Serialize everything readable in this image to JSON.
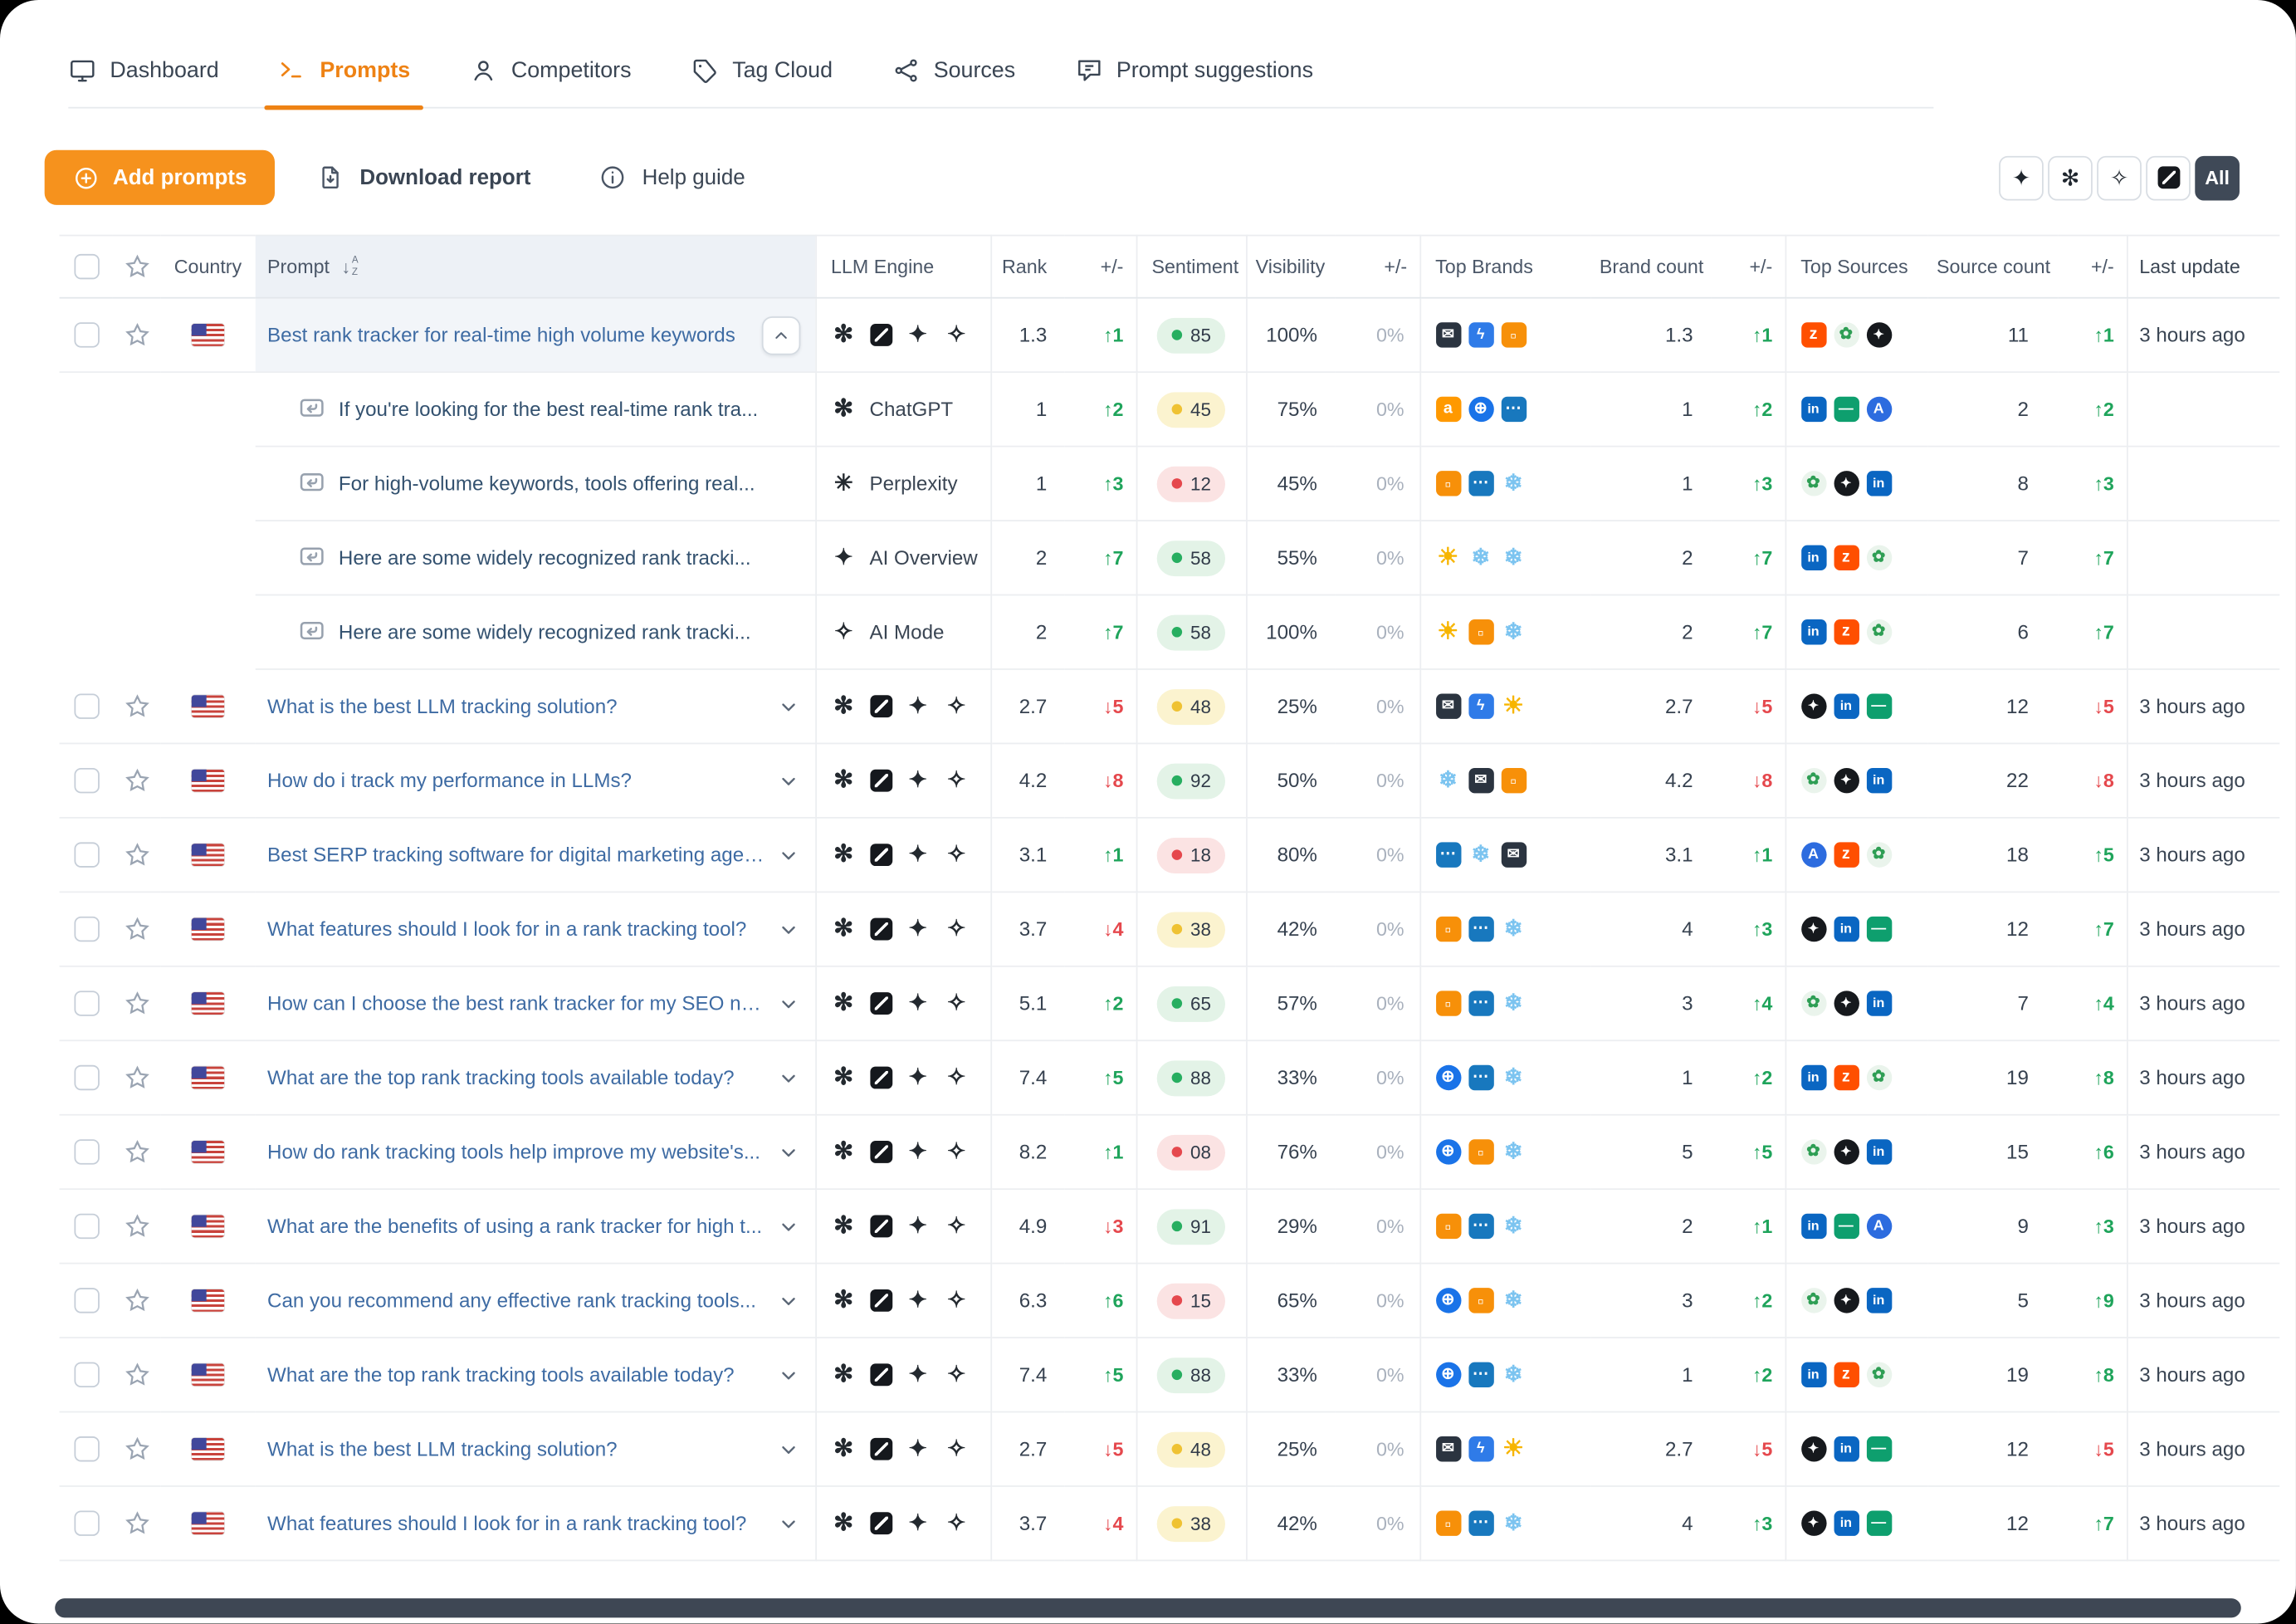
{
  "nav": {
    "tabs": [
      {
        "label": "Dashboard"
      },
      {
        "label": "Prompts",
        "active": true
      },
      {
        "label": "Competitors"
      },
      {
        "label": "Tag Cloud"
      },
      {
        "label": "Sources"
      },
      {
        "label": "Prompt suggestions"
      }
    ]
  },
  "toolbar": {
    "add_prompts_label": "Add prompts",
    "download_report_label": "Download report",
    "help_guide_label": "Help guide",
    "engine_filter": {
      "all_label": "All"
    }
  },
  "colors": {
    "accent_orange": "#EE8214",
    "up_green": "#1FA45B",
    "down_red": "#E5484D",
    "link_blue": "#3E6BA3",
    "all_button_dark": "#3F4957"
  },
  "icons": {
    "chatgpt": {
      "glyph": "✻",
      "fg": "#23292F",
      "shape": "plain",
      "fs": 16
    },
    "grok": {
      "type": "grok"
    },
    "ai-overview": {
      "glyph": "✦",
      "fg": "#23292F",
      "shape": "plain",
      "fs": 15
    },
    "ai-mode": {
      "glyph": "✧",
      "fg": "#23292F",
      "shape": "plain",
      "fs": 15
    },
    "perplexity": {
      "glyph": "✳",
      "fg": "#23292F",
      "shape": "plain",
      "fs": 15
    },
    "mail-dark": {
      "glyph": "✉",
      "fg": "#FFFFFF",
      "bg": "#2B3440",
      "shape": "square"
    },
    "bolt-blue": {
      "glyph": "ϟ",
      "fg": "#FFFFFF",
      "bg": "#2F7BE8",
      "shape": "square"
    },
    "img-orange": {
      "glyph": "▫",
      "fg": "#FFFFFF",
      "bg": "#F79009",
      "shape": "square",
      "fs": 12
    },
    "amazon": {
      "glyph": "a",
      "fg": "#FFFFFF",
      "bg": "#FF9900",
      "shape": "square",
      "fs": 11
    },
    "globe-blue": {
      "glyph": "⊕",
      "fg": "#FFFFFF",
      "bg": "#1A73E8",
      "shape": "circle",
      "fs": 11
    },
    "dots-blue": {
      "glyph": "⋯",
      "fg": "#FFFFFF",
      "bg": "#1878BE",
      "shape": "square",
      "fs": 11
    },
    "snowflake": {
      "glyph": "❄",
      "fg": "#7CC4F0",
      "shape": "plain",
      "fs": 15
    },
    "sun": {
      "glyph": "☀",
      "fg": "#F7B500",
      "shape": "plain",
      "fs": 16
    },
    "linkedin": {
      "glyph": "in",
      "fg": "#FFFFFF",
      "bg": "#0A66C2",
      "shape": "square",
      "fs": 9
    },
    "zapier": {
      "glyph": "z",
      "fg": "#FFFFFF",
      "bg": "#FF4F00",
      "shape": "square",
      "fs": 11
    },
    "plant-green": {
      "glyph": "✿",
      "fg": "#2E9E54",
      "bg": "#EAF4EC",
      "shape": "circle",
      "fs": 11
    },
    "black-circle": {
      "glyph": "✦",
      "fg": "#FFFFFF",
      "bg": "#16191D",
      "shape": "circle",
      "fs": 9
    },
    "teal-flat": {
      "glyph": "—",
      "fg": "#FFFFFF",
      "bg": "#0E9F6E",
      "shape": "square",
      "fs": 10
    },
    "blue-a": {
      "glyph": "A",
      "fg": "#FFFFFF",
      "bg": "#2D6CDF",
      "shape": "circle",
      "fs": 10
    }
  },
  "table": {
    "headers": {
      "country": "Country",
      "prompt": "Prompt",
      "llm_engine": "LLM Engine",
      "rank": "Rank",
      "rank_delta": "+/-",
      "sentiment": "Sentiment",
      "visibility": "Visibility",
      "visibility_delta": "+/-",
      "top_brands": "Top Brands",
      "brand_count": "Brand count",
      "brand_delta": "+/-",
      "top_sources": "Top Sources",
      "source_count": "Source count",
      "source_delta": "+/-",
      "last_update": "Last update"
    },
    "rows": [
      {
        "type": "parent",
        "expanded": true,
        "country": "us",
        "prompt": "Best rank tracker for real-time high volume keywords",
        "engines": [
          "chatgpt",
          "grok",
          "ai-overview",
          "ai-mode"
        ],
        "rank": "1.3",
        "rank_delta": {
          "dir": "up",
          "value": "1"
        },
        "sentiment": {
          "level": "green",
          "value": "85"
        },
        "visibility": "100%",
        "visibility_delta": "0%",
        "brands": [
          "mail-dark",
          "bolt-blue",
          "img-orange"
        ],
        "brand_count": "1.3",
        "brand_delta": {
          "dir": "up",
          "value": "1"
        },
        "sources": [
          "zapier",
          "plant-green",
          "black-circle"
        ],
        "source_count": "11",
        "source_delta": {
          "dir": "up",
          "value": "1"
        },
        "last_update": "3 hours ago"
      },
      {
        "type": "child",
        "prompt": "If you're looking for the best real-time rank tra...",
        "engine": {
          "icon": "chatgpt",
          "label": "ChatGPT"
        },
        "rank": "1",
        "rank_delta": {
          "dir": "up",
          "value": "2"
        },
        "sentiment": {
          "level": "yellow",
          "value": "45"
        },
        "visibility": "75%",
        "visibility_delta": "0%",
        "brands": [
          "amazon",
          "globe-blue",
          "dots-blue"
        ],
        "brand_count": "1",
        "brand_delta": {
          "dir": "up",
          "value": "2"
        },
        "sources": [
          "linkedin",
          "teal-flat",
          "blue-a"
        ],
        "source_count": "2",
        "source_delta": {
          "dir": "up",
          "value": "2"
        },
        "last_update": ""
      },
      {
        "type": "child",
        "prompt": "For high-volume keywords, tools offering real...",
        "engine": {
          "icon": "perplexity",
          "label": "Perplexity"
        },
        "rank": "1",
        "rank_delta": {
          "dir": "up",
          "value": "3"
        },
        "sentiment": {
          "level": "red",
          "value": "12"
        },
        "visibility": "45%",
        "visibility_delta": "0%",
        "brands": [
          "img-orange",
          "dots-blue",
          "snowflake"
        ],
        "brand_count": "1",
        "brand_delta": {
          "dir": "up",
          "value": "3"
        },
        "sources": [
          "plant-green",
          "black-circle",
          "linkedin"
        ],
        "source_count": "8",
        "source_delta": {
          "dir": "up",
          "value": "3"
        },
        "last_update": ""
      },
      {
        "type": "child",
        "prompt": "Here are some widely recognized rank tracki...",
        "engine": {
          "icon": "ai-overview",
          "label": "AI Overview"
        },
        "rank": "2",
        "rank_delta": {
          "dir": "up",
          "value": "7"
        },
        "sentiment": {
          "level": "green",
          "value": "58"
        },
        "visibility": "55%",
        "visibility_delta": "0%",
        "brands": [
          "sun",
          "snowflake",
          "snowflake"
        ],
        "brand_count": "2",
        "brand_delta": {
          "dir": "up",
          "value": "7"
        },
        "sources": [
          "linkedin",
          "zapier",
          "plant-green"
        ],
        "source_count": "7",
        "source_delta": {
          "dir": "up",
          "value": "7"
        },
        "last_update": ""
      },
      {
        "type": "child",
        "prompt": "Here are some widely recognized rank tracki...",
        "engine": {
          "icon": "ai-mode",
          "label": "AI Mode"
        },
        "rank": "2",
        "rank_delta": {
          "dir": "up",
          "value": "7"
        },
        "sentiment": {
          "level": "green",
          "value": "58"
        },
        "visibility": "100%",
        "visibility_delta": "0%",
        "brands": [
          "sun",
          "img-orange",
          "snowflake"
        ],
        "brand_count": "2",
        "brand_delta": {
          "dir": "up",
          "value": "7"
        },
        "sources": [
          "linkedin",
          "zapier",
          "plant-green"
        ],
        "source_count": "6",
        "source_delta": {
          "dir": "up",
          "value": "7"
        },
        "last_update": ""
      },
      {
        "type": "parent",
        "country": "us",
        "prompt": "What is the best LLM tracking solution?",
        "engines": [
          "chatgpt",
          "grok",
          "ai-overview",
          "ai-mode"
        ],
        "rank": "2.7",
        "rank_delta": {
          "dir": "down",
          "value": "5"
        },
        "sentiment": {
          "level": "yellow",
          "value": "48"
        },
        "visibility": "25%",
        "visibility_delta": "0%",
        "brands": [
          "mail-dark",
          "bolt-blue",
          "sun"
        ],
        "brand_count": "2.7",
        "brand_delta": {
          "dir": "down",
          "value": "5"
        },
        "sources": [
          "black-circle",
          "linkedin",
          "teal-flat"
        ],
        "source_count": "12",
        "source_delta": {
          "dir": "down",
          "value": "5"
        },
        "last_update": "3 hours ago"
      },
      {
        "type": "parent",
        "country": "us",
        "prompt": "How do i track my performance in LLMs?",
        "engines": [
          "chatgpt",
          "grok",
          "ai-overview",
          "ai-mode"
        ],
        "rank": "4.2",
        "rank_delta": {
          "dir": "down",
          "value": "8"
        },
        "sentiment": {
          "level": "green",
          "value": "92"
        },
        "visibility": "50%",
        "visibility_delta": "0%",
        "brands": [
          "snowflake",
          "mail-dark",
          "img-orange"
        ],
        "brand_count": "4.2",
        "brand_delta": {
          "dir": "down",
          "value": "8"
        },
        "sources": [
          "plant-green",
          "black-circle",
          "linkedin"
        ],
        "source_count": "22",
        "source_delta": {
          "dir": "down",
          "value": "8"
        },
        "last_update": "3 hours ago"
      },
      {
        "type": "parent",
        "country": "us",
        "prompt": "Best SERP tracking software for digital marketing agen...",
        "engines": [
          "chatgpt",
          "grok",
          "ai-overview",
          "ai-mode"
        ],
        "rank": "3.1",
        "rank_delta": {
          "dir": "up",
          "value": "1"
        },
        "sentiment": {
          "level": "red",
          "value": "18"
        },
        "visibility": "80%",
        "visibility_delta": "0%",
        "brands": [
          "dots-blue",
          "snowflake",
          "mail-dark"
        ],
        "brand_count": "3.1",
        "brand_delta": {
          "dir": "up",
          "value": "1"
        },
        "sources": [
          "blue-a",
          "zapier",
          "plant-green"
        ],
        "source_count": "18",
        "source_delta": {
          "dir": "up",
          "value": "5"
        },
        "last_update": "3 hours ago"
      },
      {
        "type": "parent",
        "country": "us",
        "prompt": "What features should I look for in a rank tracking tool?",
        "engines": [
          "chatgpt",
          "grok",
          "ai-overview",
          "ai-mode"
        ],
        "rank": "3.7",
        "rank_delta": {
          "dir": "down",
          "value": "4"
        },
        "sentiment": {
          "level": "yellow",
          "value": "38"
        },
        "visibility": "42%",
        "visibility_delta": "0%",
        "brands": [
          "img-orange",
          "dots-blue",
          "snowflake"
        ],
        "brand_count": "4",
        "brand_delta": {
          "dir": "up",
          "value": "3"
        },
        "sources": [
          "black-circle",
          "linkedin",
          "teal-flat"
        ],
        "source_count": "12",
        "source_delta": {
          "dir": "up",
          "value": "7"
        },
        "last_update": "3 hours ago"
      },
      {
        "type": "parent",
        "country": "us",
        "prompt": "How can I choose the best rank tracker for my SEO ne...",
        "engines": [
          "chatgpt",
          "grok",
          "ai-overview",
          "ai-mode"
        ],
        "rank": "5.1",
        "rank_delta": {
          "dir": "up",
          "value": "2"
        },
        "sentiment": {
          "level": "green",
          "value": "65"
        },
        "visibility": "57%",
        "visibility_delta": "0%",
        "brands": [
          "img-orange",
          "dots-blue",
          "snowflake"
        ],
        "brand_count": "3",
        "brand_delta": {
          "dir": "up",
          "value": "4"
        },
        "sources": [
          "plant-green",
          "black-circle",
          "linkedin"
        ],
        "source_count": "7",
        "source_delta": {
          "dir": "up",
          "value": "4"
        },
        "last_update": "3 hours ago"
      },
      {
        "type": "parent",
        "country": "us",
        "prompt": "What are the top rank tracking tools available today?",
        "engines": [
          "chatgpt",
          "grok",
          "ai-overview",
          "ai-mode"
        ],
        "rank": "7.4",
        "rank_delta": {
          "dir": "up",
          "value": "5"
        },
        "sentiment": {
          "level": "green",
          "value": "88"
        },
        "visibility": "33%",
        "visibility_delta": "0%",
        "brands": [
          "globe-blue",
          "dots-blue",
          "snowflake"
        ],
        "brand_count": "1",
        "brand_delta": {
          "dir": "up",
          "value": "2"
        },
        "sources": [
          "linkedin",
          "zapier",
          "plant-green"
        ],
        "source_count": "19",
        "source_delta": {
          "dir": "up",
          "value": "8"
        },
        "last_update": "3 hours ago"
      },
      {
        "type": "parent",
        "country": "us",
        "prompt": "How do rank tracking tools help improve my website's...",
        "engines": [
          "chatgpt",
          "grok",
          "ai-overview",
          "ai-mode"
        ],
        "rank": "8.2",
        "rank_delta": {
          "dir": "up",
          "value": "1"
        },
        "sentiment": {
          "level": "red",
          "value": "08"
        },
        "visibility": "76%",
        "visibility_delta": "0%",
        "brands": [
          "globe-blue",
          "img-orange",
          "snowflake"
        ],
        "brand_count": "5",
        "brand_delta": {
          "dir": "up",
          "value": "5"
        },
        "sources": [
          "plant-green",
          "black-circle",
          "linkedin"
        ],
        "source_count": "15",
        "source_delta": {
          "dir": "up",
          "value": "6"
        },
        "last_update": "3 hours ago"
      },
      {
        "type": "parent",
        "country": "us",
        "prompt": "What are the benefits of using a rank tracker for high t...",
        "engines": [
          "chatgpt",
          "grok",
          "ai-overview",
          "ai-mode"
        ],
        "rank": "4.9",
        "rank_delta": {
          "dir": "down",
          "value": "3"
        },
        "sentiment": {
          "level": "green",
          "value": "91"
        },
        "visibility": "29%",
        "visibility_delta": "0%",
        "brands": [
          "img-orange",
          "dots-blue",
          "snowflake"
        ],
        "brand_count": "2",
        "brand_delta": {
          "dir": "up",
          "value": "1"
        },
        "sources": [
          "linkedin",
          "teal-flat",
          "blue-a"
        ],
        "source_count": "9",
        "source_delta": {
          "dir": "up",
          "value": "3"
        },
        "last_update": "3 hours ago"
      },
      {
        "type": "parent",
        "country": "us",
        "prompt": "Can you recommend any effective rank tracking tools...",
        "engines": [
          "chatgpt",
          "grok",
          "ai-overview",
          "ai-mode"
        ],
        "rank": "6.3",
        "rank_delta": {
          "dir": "up",
          "value": "6"
        },
        "sentiment": {
          "level": "red",
          "value": "15"
        },
        "visibility": "65%",
        "visibility_delta": "0%",
        "brands": [
          "globe-blue",
          "img-orange",
          "snowflake"
        ],
        "brand_count": "3",
        "brand_delta": {
          "dir": "up",
          "value": "2"
        },
        "sources": [
          "plant-green",
          "black-circle",
          "linkedin"
        ],
        "source_count": "5",
        "source_delta": {
          "dir": "up",
          "value": "9"
        },
        "last_update": "3 hours ago"
      },
      {
        "type": "parent",
        "country": "us",
        "prompt": "What are the top rank tracking tools available today?",
        "engines": [
          "chatgpt",
          "grok",
          "ai-overview",
          "ai-mode"
        ],
        "rank": "7.4",
        "rank_delta": {
          "dir": "up",
          "value": "5"
        },
        "sentiment": {
          "level": "green",
          "value": "88"
        },
        "visibility": "33%",
        "visibility_delta": "0%",
        "brands": [
          "globe-blue",
          "dots-blue",
          "snowflake"
        ],
        "brand_count": "1",
        "brand_delta": {
          "dir": "up",
          "value": "2"
        },
        "sources": [
          "linkedin",
          "zapier",
          "plant-green"
        ],
        "source_count": "19",
        "source_delta": {
          "dir": "up",
          "value": "8"
        },
        "last_update": "3 hours ago"
      },
      {
        "type": "parent",
        "country": "us",
        "prompt": "What is the best LLM tracking solution?",
        "engines": [
          "chatgpt",
          "grok",
          "ai-overview",
          "ai-mode"
        ],
        "rank": "2.7",
        "rank_delta": {
          "dir": "down",
          "value": "5"
        },
        "sentiment": {
          "level": "yellow",
          "value": "48"
        },
        "visibility": "25%",
        "visibility_delta": "0%",
        "brands": [
          "mail-dark",
          "bolt-blue",
          "sun"
        ],
        "brand_count": "2.7",
        "brand_delta": {
          "dir": "down",
          "value": "5"
        },
        "sources": [
          "black-circle",
          "linkedin",
          "teal-flat"
        ],
        "source_count": "12",
        "source_delta": {
          "dir": "down",
          "value": "5"
        },
        "last_update": "3 hours ago"
      },
      {
        "type": "parent",
        "country": "us",
        "prompt": "What features should I look for in a rank tracking tool?",
        "engines": [
          "chatgpt",
          "grok",
          "ai-overview",
          "ai-mode"
        ],
        "rank": "3.7",
        "rank_delta": {
          "dir": "down",
          "value": "4"
        },
        "sentiment": {
          "level": "yellow",
          "value": "38"
        },
        "visibility": "42%",
        "visibility_delta": "0%",
        "brands": [
          "img-orange",
          "dots-blue",
          "snowflake"
        ],
        "brand_count": "4",
        "brand_delta": {
          "dir": "up",
          "value": "3"
        },
        "sources": [
          "black-circle",
          "linkedin",
          "teal-flat"
        ],
        "source_count": "12",
        "source_delta": {
          "dir": "up",
          "value": "7"
        },
        "last_update": "3 hours ago"
      }
    ]
  }
}
